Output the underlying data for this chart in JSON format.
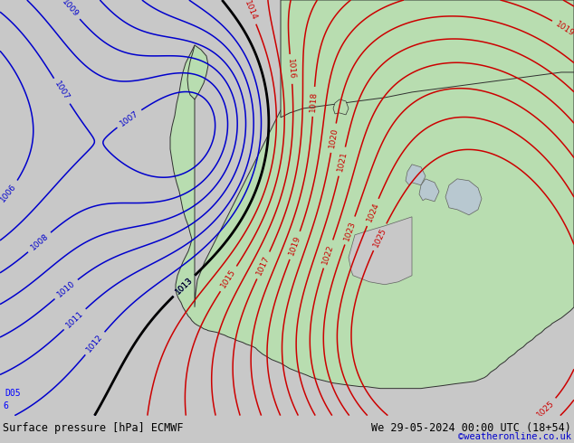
{
  "title_left": "Surface pressure [hPa] ECMWF",
  "title_right": "We 29-05-2024 00:00 UTC (18+54)",
  "watermark": "©weatheronline.co.uk",
  "bg_color": "#c8c8c8",
  "land_color": "#b8ddb0",
  "sea_color": "#c8c8c8",
  "lake_color": "#b8c8d0",
  "contour_color_low": "#0000cc",
  "contour_color_high": "#cc0000",
  "contour_color_black": "#000000",
  "bottom_bar_color": "#e8e8e8",
  "text_color_watermark": "#0000cc",
  "fig_width": 6.34,
  "fig_height": 4.9,
  "dpi": 100
}
